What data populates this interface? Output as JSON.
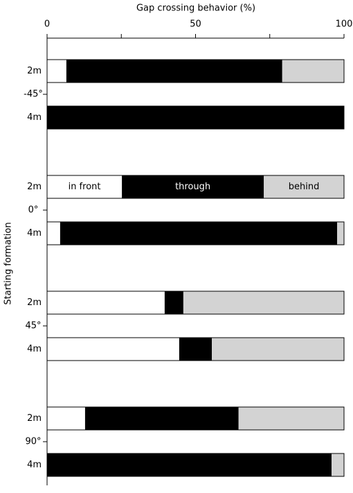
{
  "chart_data": {
    "type": "stacked-barh",
    "title": "Gap crossing behavior (%)",
    "ylabel": "Starting formation",
    "groups": [
      "-45°",
      "0°",
      "45°",
      "90°"
    ],
    "categories": [
      "2m",
      "4m",
      "2m",
      "4m",
      "2m",
      "4m",
      "2m",
      "4m"
    ],
    "series": [
      {
        "name": "in front",
        "color": "#ffffff",
        "text_color": "#000000",
        "values": [
          6.5,
          0,
          25.2,
          4.4,
          39.6,
          44.5,
          12.8,
          0
        ]
      },
      {
        "name": "through",
        "color": "#000000",
        "text_color": "#ffffff",
        "values": [
          72.7,
          100,
          47.8,
          93.3,
          6.3,
          11.0,
          51.7,
          95.8
        ]
      },
      {
        "name": "behind",
        "color": "#d3d3d3",
        "text_color": "#000000",
        "values": [
          20.8,
          0,
          27.0,
          2.3,
          54.1,
          44.5,
          35.5,
          4.2
        ]
      }
    ],
    "xlim": [
      0,
      100
    ],
    "xticks": [
      0,
      50,
      100
    ],
    "xminorticks": [
      25,
      75
    ]
  }
}
